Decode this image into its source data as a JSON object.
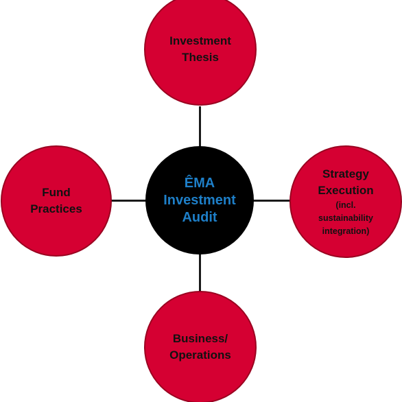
{
  "colors": {
    "node_fill": "#d50032",
    "node_border": "#9a0020",
    "hub_fill": "#000000",
    "hub_text": "#1e7fc8",
    "node_text": "#111111",
    "connector": "#1a1a1a"
  },
  "hub": {
    "label": "ÊMA\nInvestment\nAudit"
  },
  "nodes": {
    "top": {
      "label": "Investment\nThesis"
    },
    "right": {
      "label": "Strategy\nExecution",
      "sublabel": "(incl.\nsustainability\nintegration)"
    },
    "bottom": {
      "label": "Business/\nOperations"
    },
    "left": {
      "label": "Fund\nPractices"
    }
  }
}
